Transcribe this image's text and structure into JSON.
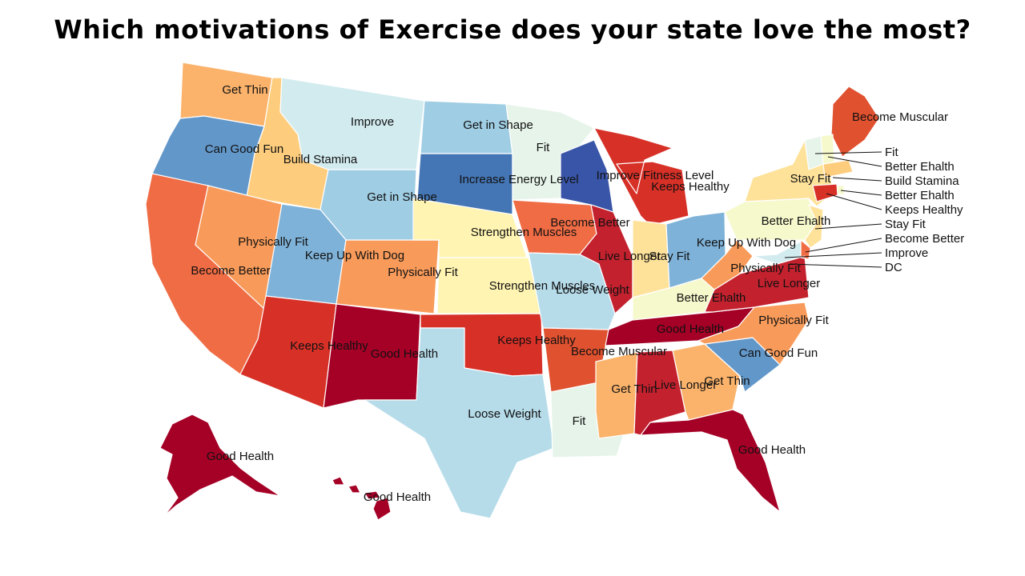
{
  "title": "Which motivations of Exercise does your state love the most?",
  "colors": {
    "Good Health": "#a50026",
    "Live Longer": "#c3212e",
    "Keeps Healthy": "#d73027",
    "Become Muscular": "#e0512f",
    "Become Better": "#f06c45",
    "Physically Fit": "#f89b5a",
    "Get Thin": "#fbb36b",
    "Build Stamina": "#fdcd7d",
    "Stay Fit": "#fee29a",
    "Strengthen Muscles": "#fff4b2",
    "Better Ehalth": "#f6f9cb",
    "Fit": "#e6f4ea",
    "Improve": "#d2ebef",
    "Loose Weight": "#b6dcea",
    "Get in Shape": "#9fcde3",
    "Keep Up With Dog": "#7fb2d8",
    "Can Good Fun": "#6297c9",
    "Increase Energy Level": "#4475b4",
    "Improve Fitness Level": "#3955a8"
  },
  "states": [
    {
      "name": "WA",
      "value": "Get Thin"
    },
    {
      "name": "OR",
      "value": "Can Good Fun"
    },
    {
      "name": "CA",
      "value": "Become Better"
    },
    {
      "name": "ID",
      "value": "Build Stamina"
    },
    {
      "name": "NV",
      "value": "Physically Fit"
    },
    {
      "name": "MT",
      "value": "Improve"
    },
    {
      "name": "WY",
      "value": "Get in Shape"
    },
    {
      "name": "UT",
      "value": "Keep Up With Dog"
    },
    {
      "name": "AZ",
      "value": "Keeps Healthy"
    },
    {
      "name": "CO",
      "value": "Physically Fit"
    },
    {
      "name": "NM",
      "value": "Good Health"
    },
    {
      "name": "ND",
      "value": "Get in Shape"
    },
    {
      "name": "SD",
      "value": "Increase Energy Level"
    },
    {
      "name": "NE",
      "value": "Strengthen Muscles"
    },
    {
      "name": "KS",
      "value": "Strengthen Muscles"
    },
    {
      "name": "OK",
      "value": "Keeps Healthy"
    },
    {
      "name": "TX",
      "value": "Loose Weight"
    },
    {
      "name": "MN",
      "value": "Fit"
    },
    {
      "name": "IA",
      "value": "Become Better"
    },
    {
      "name": "MO",
      "value": "Loose Weight"
    },
    {
      "name": "AR",
      "value": "Become Muscular"
    },
    {
      "name": "LA",
      "value": "Fit"
    },
    {
      "name": "WI",
      "value": "Improve Fitness Level"
    },
    {
      "name": "IL",
      "value": "Live Longer"
    },
    {
      "name": "MI",
      "value": "Keeps Healthy"
    },
    {
      "name": "IN",
      "value": "Stay Fit"
    },
    {
      "name": "OH",
      "value": "Keep Up With Dog"
    },
    {
      "name": "KY",
      "value": "Better Ehalth"
    },
    {
      "name": "TN",
      "value": "Good Health"
    },
    {
      "name": "MS",
      "value": "Get Thin"
    },
    {
      "name": "AL",
      "value": "Live Longer"
    },
    {
      "name": "GA",
      "value": "Get Thin"
    },
    {
      "name": "FL",
      "value": "Good Health"
    },
    {
      "name": "SC",
      "value": "Can Good Fun"
    },
    {
      "name": "NC",
      "value": "Physically Fit"
    },
    {
      "name": "VA",
      "value": "Live Longer"
    },
    {
      "name": "WV",
      "value": "Physically Fit"
    },
    {
      "name": "PA",
      "value": "Better Ehalth"
    },
    {
      "name": "NY",
      "value": "Stay Fit"
    },
    {
      "name": "ME",
      "value": "Become Muscular"
    },
    {
      "name": "VT",
      "value": "Fit"
    },
    {
      "name": "NH",
      "value": "Better Ehalth"
    },
    {
      "name": "MA",
      "value": "Build Stamina"
    },
    {
      "name": "RI",
      "value": "Better Ehalth"
    },
    {
      "name": "CT",
      "value": "Keeps Healthy"
    },
    {
      "name": "NJ",
      "value": "Stay Fit"
    },
    {
      "name": "DE",
      "value": "Become Better"
    },
    {
      "name": "MD",
      "value": "Improve"
    },
    {
      "name": "DC",
      "value": "DC"
    },
    {
      "name": "AK",
      "value": "Good Health"
    },
    {
      "name": "HI",
      "value": "Good Health"
    }
  ],
  "labels": [
    {
      "id": "WA",
      "text": "Get Thin"
    },
    {
      "id": "OR",
      "text": "Can Good Fun"
    },
    {
      "id": "ID",
      "text": "Build Stamina"
    },
    {
      "id": "MT",
      "text": "Improve"
    },
    {
      "id": "ND",
      "text": "Get in Shape"
    },
    {
      "id": "MN",
      "text": "Fit"
    },
    {
      "id": "WI",
      "text": "Improve Fitness Level"
    },
    {
      "id": "SD",
      "text": "Increase Energy Level"
    },
    {
      "id": "WY",
      "text": "Get in Shape"
    },
    {
      "id": "MI",
      "text": "Keeps Healthy"
    },
    {
      "id": "NE",
      "text": "Strengthen Muscles"
    },
    {
      "id": "IA",
      "text": "Become Better"
    },
    {
      "id": "NV",
      "text": "Physically Fit"
    },
    {
      "id": "UT",
      "text": "Keep Up With Dog"
    },
    {
      "id": "CA",
      "text": "Become Better"
    },
    {
      "id": "CO",
      "text": "Physically Fit"
    },
    {
      "id": "KS",
      "text": "Strengthen Muscles"
    },
    {
      "id": "MO",
      "text": "Loose Weight"
    },
    {
      "id": "IL",
      "text": "Live Longer"
    },
    {
      "id": "IN",
      "text": "Stay Fit"
    },
    {
      "id": "OH",
      "text": "Keep Up With Dog"
    },
    {
      "id": "PA",
      "text": "Better Ehalth"
    },
    {
      "id": "NY",
      "text": "Stay Fit"
    },
    {
      "id": "ME",
      "text": "Become Muscular"
    },
    {
      "id": "WV",
      "text": "Physically Fit"
    },
    {
      "id": "VA",
      "text": "Live Longer"
    },
    {
      "id": "KY",
      "text": "Better Ehalth"
    },
    {
      "id": "TN",
      "text": "Good Health"
    },
    {
      "id": "NC",
      "text": "Physically Fit"
    },
    {
      "id": "AZ",
      "text": "Keeps Healthy"
    },
    {
      "id": "NM",
      "text": "Good Health"
    },
    {
      "id": "OK",
      "text": "Keeps Healthy"
    },
    {
      "id": "AR",
      "text": "Become Muscular"
    },
    {
      "id": "SC",
      "text": "Can Good Fun"
    },
    {
      "id": "MS",
      "text": "Get Thin"
    },
    {
      "id": "AL",
      "text": "Live Longer"
    },
    {
      "id": "GA",
      "text": "Get Thin"
    },
    {
      "id": "TX",
      "text": "Loose Weight"
    },
    {
      "id": "LA",
      "text": "Fit"
    },
    {
      "id": "FL",
      "text": "Good Health"
    },
    {
      "id": "AK",
      "text": "Good Health"
    },
    {
      "id": "HI",
      "text": "Good Health"
    }
  ],
  "callouts": [
    {
      "id": "VT",
      "text": "Fit"
    },
    {
      "id": "NH",
      "text": "Better Ehalth"
    },
    {
      "id": "MA",
      "text": "Build Stamina"
    },
    {
      "id": "RI",
      "text": "Better Ehalth"
    },
    {
      "id": "CT",
      "text": "Keeps Healthy"
    },
    {
      "id": "NJ",
      "text": "Stay Fit"
    },
    {
      "id": "DE",
      "text": "Become Better"
    },
    {
      "id": "MD",
      "text": "Improve"
    },
    {
      "id": "DC",
      "text": "DC"
    }
  ]
}
